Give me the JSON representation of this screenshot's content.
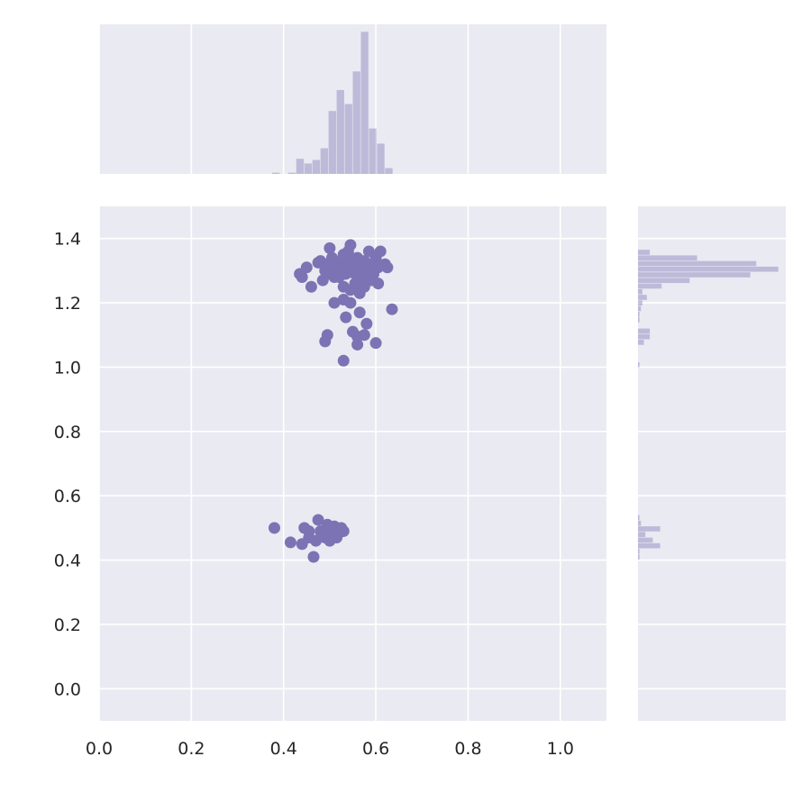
{
  "chart_data": {
    "type": "scatter",
    "kind": "joint plot (scatter with marginal histograms)",
    "title": "",
    "xlabel": "",
    "ylabel": "",
    "xlim": [
      0.0,
      1.1
    ],
    "ylim": [
      -0.1,
      1.5
    ],
    "x_ticks": [
      0.0,
      0.2,
      0.4,
      0.6,
      0.8,
      1.0
    ],
    "x_tick_labels": [
      "0.0",
      "0.2",
      "0.4",
      "0.6",
      "0.8",
      "1.0"
    ],
    "y_ticks": [
      0.0,
      0.2,
      0.4,
      0.6,
      0.8,
      1.0,
      1.2,
      1.4
    ],
    "y_tick_labels": [
      "0.0",
      "0.2",
      "0.4",
      "0.6",
      "0.8",
      "1.0",
      "1.2",
      "1.4"
    ],
    "grid": true,
    "color": "#7b73b3",
    "background": "#eaeaf2",
    "points": [
      [
        0.38,
        0.5
      ],
      [
        0.415,
        0.455
      ],
      [
        0.44,
        0.45
      ],
      [
        0.445,
        0.5
      ],
      [
        0.455,
        0.49
      ],
      [
        0.465,
        0.41
      ],
      [
        0.47,
        0.46
      ],
      [
        0.475,
        0.525
      ],
      [
        0.48,
        0.49
      ],
      [
        0.49,
        0.47
      ],
      [
        0.495,
        0.51
      ],
      [
        0.5,
        0.46
      ],
      [
        0.505,
        0.49
      ],
      [
        0.51,
        0.505
      ],
      [
        0.515,
        0.47
      ],
      [
        0.52,
        0.485
      ],
      [
        0.525,
        0.5
      ],
      [
        0.53,
        0.49
      ],
      [
        0.455,
        0.47
      ],
      [
        0.5,
        0.48
      ],
      [
        0.435,
        1.29
      ],
      [
        0.44,
        1.28
      ],
      [
        0.45,
        1.31
      ],
      [
        0.46,
        1.25
      ],
      [
        0.475,
        1.325
      ],
      [
        0.48,
        1.33
      ],
      [
        0.485,
        1.27
      ],
      [
        0.49,
        1.3
      ],
      [
        0.495,
        1.32
      ],
      [
        0.5,
        1.37
      ],
      [
        0.505,
        1.34
      ],
      [
        0.51,
        1.28
      ],
      [
        0.515,
        1.31
      ],
      [
        0.52,
        1.3
      ],
      [
        0.525,
        1.33
      ],
      [
        0.53,
        1.35
      ],
      [
        0.535,
        1.29
      ],
      [
        0.54,
        1.36
      ],
      [
        0.545,
        1.38
      ],
      [
        0.55,
        1.32
      ],
      [
        0.555,
        1.29
      ],
      [
        0.56,
        1.34
      ],
      [
        0.565,
        1.31
      ],
      [
        0.57,
        1.27
      ],
      [
        0.575,
        1.33
      ],
      [
        0.58,
        1.3
      ],
      [
        0.585,
        1.36
      ],
      [
        0.59,
        1.32
      ],
      [
        0.595,
        1.29
      ],
      [
        0.6,
        1.34
      ],
      [
        0.605,
        1.31
      ],
      [
        0.61,
        1.36
      ],
      [
        0.62,
        1.32
      ],
      [
        0.625,
        1.31
      ],
      [
        0.53,
        1.25
      ],
      [
        0.545,
        1.24
      ],
      [
        0.555,
        1.26
      ],
      [
        0.565,
        1.23
      ],
      [
        0.575,
        1.25
      ],
      [
        0.605,
        1.26
      ],
      [
        0.54,
        1.3
      ],
      [
        0.55,
        1.31
      ],
      [
        0.56,
        1.3
      ],
      [
        0.52,
        1.28
      ],
      [
        0.57,
        1.32
      ],
      [
        0.58,
        1.28
      ],
      [
        0.59,
        1.27
      ],
      [
        0.5,
        1.29
      ],
      [
        0.545,
        1.33
      ],
      [
        0.535,
        1.32
      ],
      [
        0.51,
        1.2
      ],
      [
        0.53,
        1.21
      ],
      [
        0.545,
        1.2
      ],
      [
        0.565,
        1.17
      ],
      [
        0.535,
        1.155
      ],
      [
        0.58,
        1.135
      ],
      [
        0.635,
        1.18
      ],
      [
        0.55,
        1.11
      ],
      [
        0.56,
        1.095
      ],
      [
        0.575,
        1.1
      ],
      [
        0.495,
        1.1
      ],
      [
        0.49,
        1.08
      ],
      [
        0.56,
        1.07
      ],
      [
        0.6,
        1.075
      ],
      [
        0.53,
        1.02
      ]
    ],
    "x_marginal_histogram": {
      "bin_edges": [
        0.375,
        0.3925,
        0.41,
        0.4275,
        0.445,
        0.4625,
        0.48,
        0.4975,
        0.515,
        0.5325,
        0.55,
        0.5675,
        0.585,
        0.6025,
        0.62,
        0.6375
      ],
      "counts": [
        1,
        0,
        1,
        13,
        9,
        12,
        22,
        54,
        72,
        60,
        88,
        122,
        39,
        26,
        5
      ]
    },
    "y_marginal_histogram": {
      "bin_edges": [
        0.4,
        0.4175,
        0.435,
        0.4525,
        0.47,
        0.4875,
        0.505,
        0.5225,
        0.54,
        0.9975,
        1.015,
        1.0325,
        1.05,
        1.0675,
        1.085,
        1.1025,
        1.12,
        1.1375,
        1.155,
        1.1725,
        1.19,
        1.2075,
        1.225,
        1.2425,
        1.26,
        1.2775,
        1.295,
        1.3125,
        1.33,
        1.3475,
        1.365,
        1.3825
      ],
      "counts": [
        1,
        1,
        15,
        10,
        5,
        15,
        2,
        1,
        0,
        1,
        0,
        0,
        0,
        4,
        8,
        8,
        0,
        1,
        1,
        2,
        3,
        6,
        3,
        16,
        35,
        76,
        95,
        80,
        40,
        8,
        0
      ]
    }
  }
}
